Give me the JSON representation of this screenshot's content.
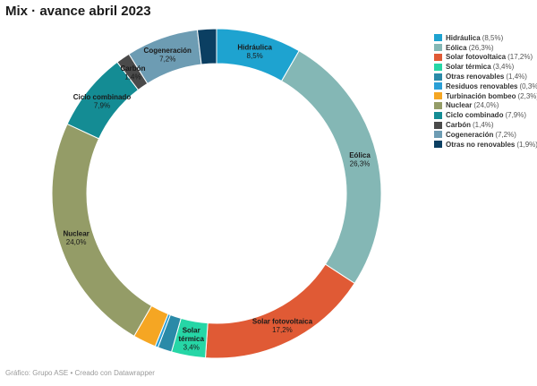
{
  "title": "Mix · avance abril 2023",
  "footer": "Gráfico: Grupo ASE • Creado con Datawrapper",
  "chart_data": {
    "type": "pie",
    "donut": true,
    "title": "Mix · avance abril 2023",
    "unit": "%",
    "decimal_separator": ",",
    "legend_position": "right",
    "slices": [
      {
        "name": "Hidráulica",
        "value": 8.5,
        "label": "8,5%",
        "color": "#1ea3d0",
        "show_label": true
      },
      {
        "name": "Eólica",
        "value": 26.3,
        "label": "26,3%",
        "color": "#84b7b5",
        "show_label": true
      },
      {
        "name": "Solar fotovoltaica",
        "value": 17.2,
        "label": "17,2%",
        "color": "#e05a35",
        "show_label": true
      },
      {
        "name": "Solar térmica",
        "value": 3.4,
        "label": "3,4%",
        "color": "#26d6a6",
        "show_label": true
      },
      {
        "name": "Otras renovables",
        "value": 1.4,
        "label": "1,4%",
        "color": "#2a8aa8",
        "show_label": false
      },
      {
        "name": "Residuos renovables",
        "value": 0.3,
        "label": "0,3%",
        "color": "#2a9fd6",
        "show_label": false
      },
      {
        "name": "Turbinación bombeo",
        "value": 2.3,
        "label": "2,3%",
        "color": "#f5a623",
        "show_label": false
      },
      {
        "name": "Nuclear",
        "value": 24.0,
        "label": "24,0%",
        "color": "#949c67",
        "show_label": true
      },
      {
        "name": "Ciclo combinado",
        "value": 7.9,
        "label": "7,9%",
        "color": "#148c94",
        "show_label": true
      },
      {
        "name": "Carbón",
        "value": 1.4,
        "label": "1,4%",
        "color": "#4a4a4a",
        "show_label": true
      },
      {
        "name": "Cogeneración",
        "value": 7.2,
        "label": "7,2%",
        "color": "#6d9cb3",
        "show_label": true
      },
      {
        "name": "Otras no renovables",
        "value": 1.9,
        "label": "1,9%",
        "color": "#0b3f62",
        "show_label": false
      }
    ]
  }
}
